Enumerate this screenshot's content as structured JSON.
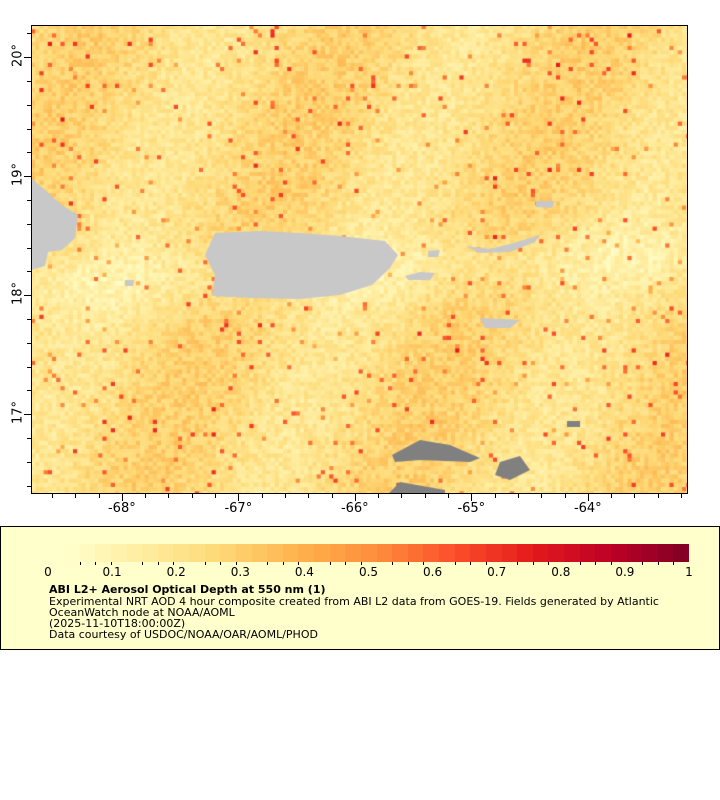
{
  "map": {
    "lon_range": [
      -68.78,
      -63.14
    ],
    "lat_range": [
      16.33,
      20.27
    ],
    "lat_ticks": [
      "20°",
      "19°",
      "18°",
      "17°"
    ],
    "lat_values": [
      20,
      19,
      18,
      17
    ],
    "lon_ticks": [
      "-68°",
      "-67°",
      "-66°",
      "-65°",
      "-64°"
    ],
    "lon_values": [
      -68,
      -67,
      -66,
      -65,
      -64
    ],
    "land_color": "#c8c8c8",
    "nodata_color": "#808080"
  },
  "colorbar": {
    "min": 0,
    "max": 1,
    "tick_labels": [
      "0",
      "0.1",
      "0.2",
      "0.3",
      "0.4",
      "0.5",
      "0.6",
      "0.7",
      "0.8",
      "0.9",
      "1"
    ],
    "colors": [
      "#ffffcc",
      "#ffeda0",
      "#fed976",
      "#feb24c",
      "#fd8d3c",
      "#fc4e2a",
      "#e31a1c",
      "#bd0026",
      "#800026"
    ]
  },
  "legend": {
    "title": "ABI L2+ Aerosol Optical Depth at 550 nm (1)",
    "line1": "Experimental NRT AOD 4 hour composite created from ABI L2 data from GOES-19. Fields generated by Atlantic",
    "line2": "OceanWatch node at NOAA/AOML",
    "line3": "(2025-11-10T18:00:00Z)",
    "line4": "Data courtesy of USDOC/NOAA/OAR/AOML/PHOD"
  }
}
